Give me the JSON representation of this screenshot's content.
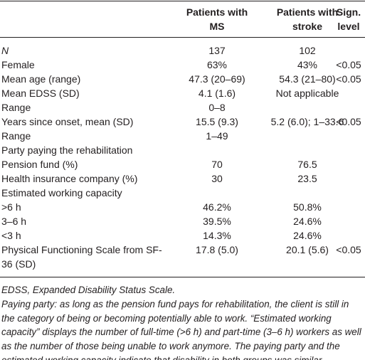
{
  "table": {
    "header": [
      "Patients with MS",
      "Patients with stroke",
      "Sign. level"
    ],
    "rows": [
      {
        "label": "N",
        "ms": "137",
        "stroke": "102"
      },
      {
        "label": "Female",
        "ms": "63%",
        "stroke": "43%",
        "sign": "<0.05"
      },
      {
        "label": "Mean age (range)",
        "ms": "47.3 (20–69)",
        "stroke": "54.3 (21–80)",
        "sign": "<0.05"
      },
      {
        "label": "Mean EDSS (SD)",
        "ms": "4.1 (1.6)",
        "stroke": "Not applicable"
      },
      {
        "label": "Range",
        "ms": "0–8"
      },
      {
        "label": "Years since onset, mean (SD)",
        "ms": "15.5 (9.3)",
        "stroke": "5.2 (6.0); 1–33.6",
        "sign": "<0.05"
      },
      {
        "label": "Range",
        "ms": "1–49"
      },
      {
        "label": "Party paying the rehabilitation"
      },
      {
        "label": "Pension fund (%)",
        "ms": "70",
        "stroke": "76.5"
      },
      {
        "label": "Health insurance company (%)",
        "ms": "30",
        "stroke": "23.5"
      },
      {
        "label": "Estimated working capacity"
      },
      {
        "label": ">6 h",
        "ms": "46.2%",
        "stroke": "50.8%"
      },
      {
        "label": "3–6 h",
        "ms": "39.5%",
        "stroke": "24.6%"
      },
      {
        "label": "<3 h",
        "ms": "14.3%",
        "stroke": "24.6%"
      },
      {
        "label": "Physical Functioning Scale from SF-36 (SD)",
        "ms": "17.8 (5.0)",
        "stroke": "20.1 (5.6)",
        "sign": "<0.05"
      }
    ]
  },
  "footnotes": [
    "EDSS, Expanded Disability Status Scale.",
    "Paying party: as long as the pension fund pays for rehabilitation, the client is still in the category of being or becoming potentially able to work. “Estimated working capacity” displays the number of full-time (>6 h) and part-time (3–6 h) workers as well as the number of those being unable to work anymore. The paying party and the estimated working capacity indicate that disability in both groups was similar."
  ]
}
